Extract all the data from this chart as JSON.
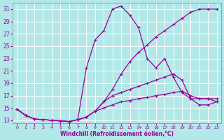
{
  "xlabel": "Windchill (Refroidissement éolien,°C)",
  "bg_color": "#b2e8e8",
  "line_color": "#990099",
  "grid_color": "#ffffff",
  "xlim": [
    -0.5,
    23.5
  ],
  "ylim": [
    12.5,
    32
  ],
  "yticks": [
    13,
    15,
    17,
    19,
    21,
    23,
    25,
    27,
    29,
    31
  ],
  "xticks": [
    0,
    1,
    2,
    3,
    4,
    5,
    6,
    7,
    8,
    9,
    10,
    11,
    12,
    13,
    14,
    15,
    16,
    17,
    18,
    19,
    20,
    21,
    22,
    23
  ],
  "line1_x": [
    0,
    1,
    2,
    3,
    4,
    5,
    6,
    7,
    8,
    9,
    10,
    11,
    12,
    13,
    14,
    15,
    16,
    17,
    18,
    19,
    20,
    21,
    22,
    23
  ],
  "line1_y": [
    14.8,
    13.8,
    13.2,
    13.1,
    13.0,
    12.9,
    12.8,
    13.1,
    13.5,
    14.5,
    16.0,
    18.0,
    20.5,
    22.5,
    24.0,
    25.2,
    26.5,
    27.5,
    28.5,
    29.5,
    30.5,
    31.0,
    31.0,
    31.0
  ],
  "line2_x": [
    0,
    1,
    2,
    3,
    4,
    5,
    6,
    7,
    8,
    9,
    10,
    11,
    12,
    13,
    14,
    15,
    16,
    17,
    18,
    19,
    20,
    21,
    22,
    23
  ],
  "line2_y": [
    14.8,
    13.8,
    13.2,
    13.1,
    13.0,
    12.9,
    12.8,
    13.1,
    21.5,
    26.0,
    27.5,
    31.0,
    31.5,
    30.0,
    28.0,
    23.0,
    21.5,
    23.0,
    20.0,
    17.5,
    16.5,
    16.5,
    16.5,
    16.0
  ],
  "line3_x": [
    0,
    1,
    2,
    3,
    4,
    5,
    6,
    7,
    8,
    9,
    10,
    11,
    12,
    13,
    14,
    15,
    16,
    17,
    18,
    19,
    20,
    21,
    22,
    23
  ],
  "line3_y": [
    14.8,
    13.8,
    13.2,
    13.1,
    13.0,
    12.9,
    12.8,
    13.1,
    13.5,
    14.5,
    16.0,
    17.0,
    17.5,
    18.0,
    18.5,
    19.0,
    19.5,
    20.0,
    20.5,
    19.5,
    16.5,
    15.5,
    15.5,
    16.0
  ],
  "line4_x": [
    0,
    1,
    2,
    3,
    4,
    5,
    6,
    7,
    8,
    9,
    10,
    11,
    12,
    13,
    14,
    15,
    16,
    17,
    18,
    19,
    20,
    21,
    22,
    23
  ],
  "line4_y": [
    14.8,
    13.8,
    13.2,
    13.1,
    13.0,
    12.9,
    12.8,
    13.1,
    13.5,
    14.5,
    15.0,
    15.5,
    16.0,
    16.2,
    16.5,
    16.7,
    17.0,
    17.2,
    17.5,
    17.7,
    17.0,
    16.5,
    16.5,
    16.5
  ]
}
